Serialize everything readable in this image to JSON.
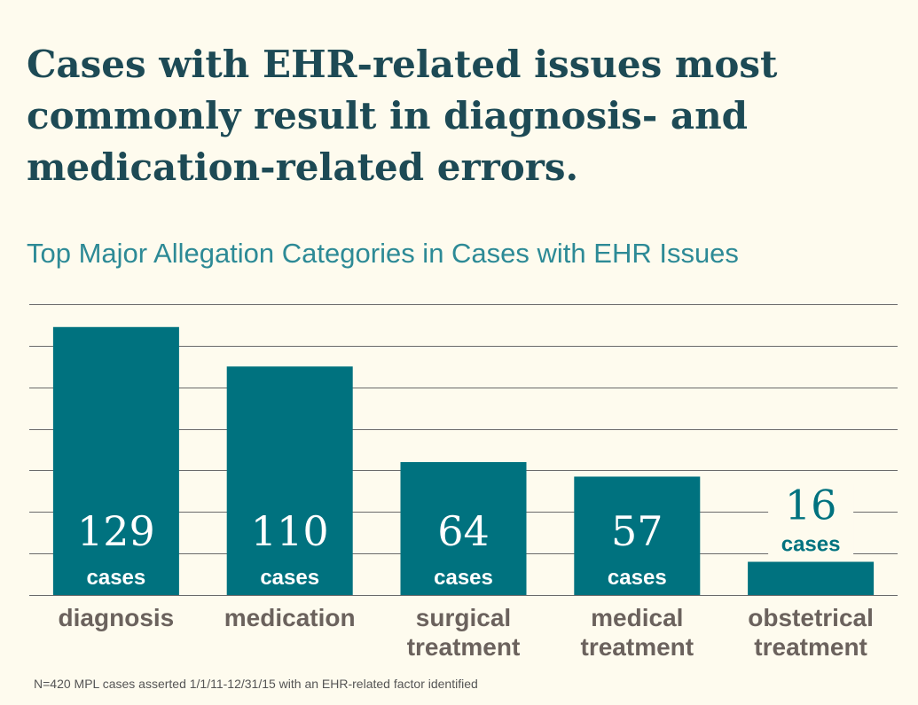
{
  "headline": "Cases with EHR-related issues most commonly result in diagnosis- and medication-related errors.",
  "footnote": "N=420 MPL cases asserted 1/1/11-12/31/15 with an EHR-related factor identified",
  "colors": {
    "background": "#fefbee",
    "bar": "#00727f",
    "headline": "#1d4a55",
    "subtitle": "#2d8a96",
    "category_label": "#6b625d",
    "gridline": "#6a6a6a",
    "label_inside": "#ffffff",
    "label_outside": "#00727f"
  },
  "chart_data": {
    "type": "bar",
    "title": "Top Major Allegation Categories in Cases with EHR Issues",
    "categories": [
      [
        "diagnosis"
      ],
      [
        "medication"
      ],
      [
        "surgical",
        "treatment"
      ],
      [
        "medical",
        "treatment"
      ],
      [
        "obstetrical",
        "treatment"
      ]
    ],
    "values": [
      129,
      110,
      64,
      57,
      16
    ],
    "value_unit": "cases",
    "ylim": [
      0,
      140
    ],
    "y_gridline_step": 20,
    "grid": true,
    "y_tick_labels": false,
    "legend": "none"
  }
}
